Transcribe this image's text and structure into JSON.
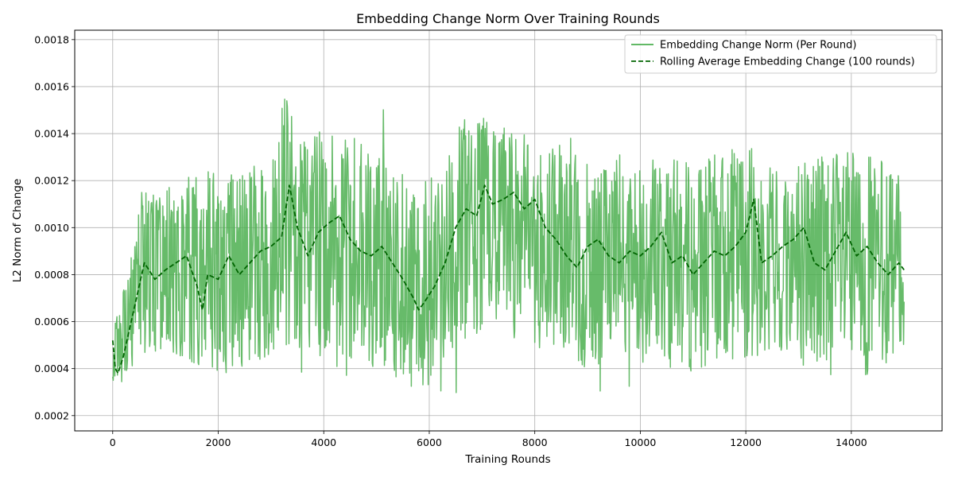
{
  "chart_data": {
    "type": "line",
    "title": "Embedding Change Norm Over Training Rounds",
    "xlabel": "Training Rounds",
    "ylabel": "L2 Norm of Change",
    "xlim": [
      -720,
      15720
    ],
    "ylim": [
      0.000135,
      0.00184
    ],
    "x_ticks": [
      0,
      2000,
      4000,
      6000,
      8000,
      10000,
      12000,
      14000
    ],
    "x_tick_labels": [
      "0",
      "2000",
      "4000",
      "6000",
      "8000",
      "10000",
      "12000",
      "14000"
    ],
    "y_ticks": [
      0.0002,
      0.0004,
      0.0006,
      0.0008,
      0.001,
      0.0012,
      0.0014,
      0.0016,
      0.0018
    ],
    "y_tick_labels": [
      "0.0002",
      "0.0004",
      "0.0006",
      "0.0008",
      "0.0010",
      "0.0012",
      "0.0014",
      "0.0016",
      "0.0018"
    ],
    "grid": true,
    "legend_position": "top-right",
    "series": [
      {
        "name": "Embedding Change Norm (Per Round)",
        "color": "#4caf50",
        "style": "solid",
        "x_range": [
          0,
          15000
        ],
        "envelope_x": [
          0,
          100,
          200,
          300,
          400,
          500,
          700,
          1000,
          1500,
          2000,
          2500,
          3000,
          3300,
          3500,
          4000,
          4500,
          5000,
          5500,
          5800,
          6000,
          6500,
          7000,
          7500,
          8000,
          8500,
          9000,
          9500,
          10000,
          10500,
          11000,
          11500,
          12000,
          12500,
          13000,
          13500,
          14000,
          14500,
          15000
        ],
        "envelope_low": [
          0.00032,
          0.00031,
          0.00035,
          0.00038,
          0.0004,
          0.00045,
          0.00048,
          0.00045,
          0.0004,
          0.00036,
          0.0004,
          0.00045,
          0.0005,
          0.00048,
          0.00045,
          0.00044,
          0.0004,
          0.00034,
          0.0003,
          0.00033,
          0.00048,
          0.00055,
          0.00052,
          0.00048,
          0.00043,
          0.0004,
          0.00042,
          0.00043,
          0.0004,
          0.00038,
          0.00042,
          0.00045,
          0.0004,
          0.00042,
          0.00038,
          0.00035,
          0.00038,
          0.0005
        ],
        "envelope_high": [
          0.00055,
          0.00065,
          0.00075,
          0.00085,
          0.00095,
          0.0011,
          0.00118,
          0.00122,
          0.00122,
          0.00125,
          0.00125,
          0.0013,
          0.0016,
          0.00138,
          0.00142,
          0.0014,
          0.00135,
          0.00125,
          0.0012,
          0.00125,
          0.00145,
          0.0015,
          0.00145,
          0.0014,
          0.00135,
          0.00128,
          0.00132,
          0.00135,
          0.0013,
          0.00128,
          0.00132,
          0.00135,
          0.00128,
          0.00132,
          0.00135,
          0.00132,
          0.0013,
          0.0012
        ]
      },
      {
        "name": "Rolling Average Embedding Change (100 rounds)",
        "color": "#006400",
        "style": "dashed",
        "x": [
          0,
          50,
          100,
          200,
          300,
          400,
          500,
          600,
          800,
          1000,
          1200,
          1400,
          1600,
          1700,
          1800,
          2000,
          2200,
          2400,
          2600,
          2800,
          3000,
          3200,
          3350,
          3500,
          3700,
          3900,
          4100,
          4300,
          4500,
          4700,
          4900,
          5100,
          5300,
          5500,
          5700,
          5800,
          5900,
          6100,
          6300,
          6500,
          6700,
          6900,
          7050,
          7200,
          7400,
          7600,
          7800,
          8000,
          8200,
          8400,
          8600,
          8800,
          9000,
          9200,
          9400,
          9600,
          9800,
          10000,
          10200,
          10400,
          10600,
          10800,
          11000,
          11200,
          11400,
          11600,
          11800,
          12000,
          12150,
          12300,
          12500,
          12700,
          12900,
          13100,
          13300,
          13500,
          13700,
          13900,
          14100,
          14300,
          14500,
          14700,
          14900,
          15000
        ],
        "values": [
          0.00052,
          0.0004,
          0.00038,
          0.00045,
          0.00055,
          0.00065,
          0.00075,
          0.00085,
          0.00078,
          0.00082,
          0.00085,
          0.00088,
          0.00075,
          0.00065,
          0.0008,
          0.00078,
          0.00088,
          0.0008,
          0.00085,
          0.0009,
          0.00092,
          0.00096,
          0.00118,
          0.001,
          0.00088,
          0.00098,
          0.00102,
          0.00105,
          0.00095,
          0.0009,
          0.00088,
          0.00092,
          0.00085,
          0.00078,
          0.0007,
          0.00065,
          0.00068,
          0.00075,
          0.00085,
          0.001,
          0.00108,
          0.00105,
          0.00118,
          0.0011,
          0.00112,
          0.00115,
          0.00108,
          0.00112,
          0.001,
          0.00095,
          0.00088,
          0.00083,
          0.00092,
          0.00095,
          0.00088,
          0.00085,
          0.0009,
          0.00088,
          0.00092,
          0.00098,
          0.00085,
          0.00088,
          0.0008,
          0.00085,
          0.0009,
          0.00088,
          0.00092,
          0.00098,
          0.00112,
          0.00085,
          0.00088,
          0.00092,
          0.00095,
          0.001,
          0.00085,
          0.00082,
          0.0009,
          0.00098,
          0.00088,
          0.00092,
          0.00085,
          0.0008,
          0.00085,
          0.00082
        ]
      }
    ]
  }
}
